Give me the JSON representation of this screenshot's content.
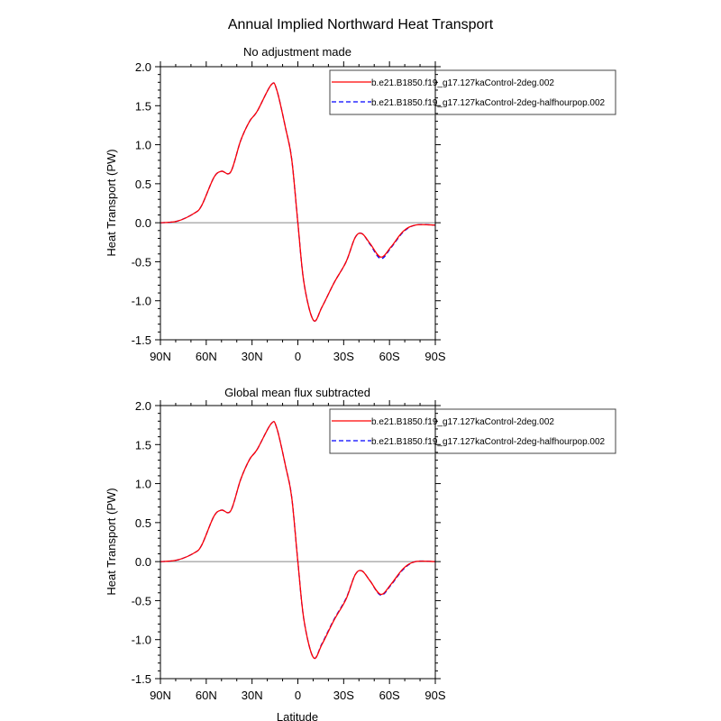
{
  "title": "Annual Implied Northward Heat Transport",
  "chart_data": [
    {
      "type": "line",
      "title": "No adjustment made",
      "xlabel": "",
      "ylabel": "Heat Transport (PW)",
      "xlim": [
        90,
        -90
      ],
      "ylim": [
        -1.5,
        2.0
      ],
      "xticks": [
        90,
        60,
        30,
        0,
        -30,
        -60,
        -90
      ],
      "xtick_labels": [
        "90N",
        "60N",
        "30N",
        "0",
        "30S",
        "60S",
        "90S"
      ],
      "yticks": [
        -1.5,
        -1.0,
        -0.5,
        0.0,
        0.5,
        1.0,
        1.5,
        2.0
      ],
      "ytick_labels": [
        "-1.5",
        "-1.0",
        "-0.5",
        "0.0",
        "0.5",
        "1.0",
        "1.5",
        "2.0"
      ],
      "zero_line": true,
      "legend_placement": "top-right",
      "x": [
        90,
        79,
        68,
        63,
        55,
        50,
        44,
        37.5,
        31.6,
        26.6,
        17.4,
        13.8,
        7.9,
        4,
        0,
        -4,
        -10.2,
        -15.8,
        -23.7,
        -31.6,
        -37.5,
        -42,
        -47.4,
        -54.3,
        -61,
        -69,
        -77,
        -90
      ],
      "series": [
        {
          "name": "b.e21.B1850.f19_g17.127kaControl-2deg.002",
          "color": "#ff0000",
          "dash": "solid",
          "values": [
            0,
            0.02,
            0.12,
            0.22,
            0.58,
            0.66,
            0.65,
            1.05,
            1.3,
            1.43,
            1.77,
            1.7,
            1.2,
            0.81,
            0,
            -0.77,
            -1.25,
            -1.08,
            -0.77,
            -0.5,
            -0.19,
            -0.14,
            -0.27,
            -0.44,
            -0.31,
            -0.11,
            -0.03,
            -0.03
          ]
        },
        {
          "name": "b.e21.B1850.f19_g17.127kaControl-2deg-halfhourpop.002",
          "color": "#0000ff",
          "dash": "dashed",
          "values": [
            0,
            0.02,
            0.12,
            0.22,
            0.58,
            0.66,
            0.65,
            1.05,
            1.3,
            1.43,
            1.77,
            1.7,
            1.2,
            0.81,
            0,
            -0.77,
            -1.25,
            -1.08,
            -0.77,
            -0.5,
            -0.19,
            -0.14,
            -0.28,
            -0.46,
            -0.32,
            -0.12,
            -0.03,
            -0.03
          ]
        }
      ]
    },
    {
      "type": "line",
      "title": "Global mean flux subtracted",
      "xlabel": "Latitude",
      "ylabel": "Heat Transport (PW)",
      "xlim": [
        90,
        -90
      ],
      "ylim": [
        -1.5,
        2.0
      ],
      "xticks": [
        90,
        60,
        30,
        0,
        -30,
        -60,
        -90
      ],
      "xtick_labels": [
        "90N",
        "60N",
        "30N",
        "0",
        "30S",
        "60S",
        "90S"
      ],
      "yticks": [
        -1.5,
        -1.0,
        -0.5,
        0.0,
        0.5,
        1.0,
        1.5,
        2.0
      ],
      "ytick_labels": [
        "-1.5",
        "-1.0",
        "-0.5",
        "0.0",
        "0.5",
        "1.0",
        "1.5",
        "2.0"
      ],
      "zero_line": true,
      "legend_placement": "top-right",
      "x": [
        90,
        79,
        68,
        63,
        55,
        50,
        44,
        37.5,
        31.6,
        26.6,
        17.4,
        13.8,
        7.9,
        4,
        0,
        -4,
        -10.2,
        -15.8,
        -23.7,
        -31.6,
        -37.5,
        -42,
        -47.4,
        -54.3,
        -61,
        -69,
        -77,
        -90
      ],
      "series": [
        {
          "name": "b.e21.B1850.f19_g17.127kaControl-2deg.002",
          "color": "#ff0000",
          "dash": "solid",
          "values": [
            0,
            0.02,
            0.11,
            0.21,
            0.58,
            0.66,
            0.65,
            1.05,
            1.31,
            1.44,
            1.77,
            1.71,
            1.21,
            0.82,
            0,
            -0.75,
            -1.23,
            -1.06,
            -0.75,
            -0.48,
            -0.17,
            -0.12,
            -0.25,
            -0.42,
            -0.29,
            -0.09,
            0,
            0
          ]
        },
        {
          "name": "b.e21.B1850.f19_g17.127kaControl-2deg-halfhourpop.002",
          "color": "#0000ff",
          "dash": "dashed",
          "values": [
            0,
            0.02,
            0.11,
            0.21,
            0.58,
            0.66,
            0.65,
            1.05,
            1.31,
            1.44,
            1.77,
            1.71,
            1.21,
            0.82,
            0,
            -0.75,
            -1.23,
            -1.05,
            -0.74,
            -0.47,
            -0.17,
            -0.12,
            -0.25,
            -0.43,
            -0.3,
            -0.1,
            0,
            0
          ]
        }
      ]
    }
  ]
}
